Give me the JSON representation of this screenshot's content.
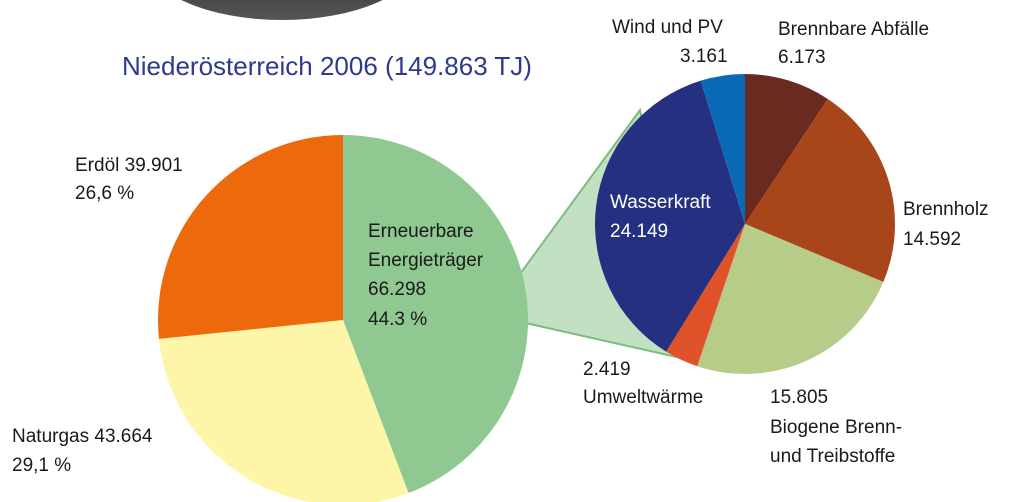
{
  "chart_data": {
    "type": "pie-of-pie",
    "title": "Niederösterreich 2006 (149.863 TJ)",
    "main": {
      "slices": [
        {
          "name": [
            "Erneuerbare",
            "Energieträger"
          ],
          "value": 66298,
          "value_label": "66.298",
          "percent": 44.3,
          "percent_label": "44.3 %",
          "color": "#8fc891"
        },
        {
          "name": "Naturgas",
          "value": 43664,
          "value_label": "43.664",
          "percent": 29.1,
          "percent_label": "29,1 %",
          "color": "#fdf5a8"
        },
        {
          "name": "Erdöl",
          "value": 39901,
          "value_label": "39.901",
          "percent": 26.6,
          "percent_label": "26,6 %",
          "color": "#ec6a0c"
        }
      ]
    },
    "detail": {
      "slices": [
        {
          "name": "Brennbare Abfälle",
          "value": 6173,
          "value_label": "6.173",
          "color": "#6b2a20"
        },
        {
          "name": "Brennholz",
          "value": 14592,
          "value_label": "14.592",
          "color": "#a8461a"
        },
        {
          "name": [
            "Biogene Brenn-",
            "und Treibstoffe"
          ],
          "value": 15805,
          "value_label": "15.805",
          "color": "#b8cc8a"
        },
        {
          "name": "Umweltwärme",
          "value": 2419,
          "value_label": "2.419",
          "color": "#e0522a"
        },
        {
          "name": "Wasserkraft",
          "value": 24149,
          "value_label": "24.149",
          "color": "#253080"
        },
        {
          "name": "Wind und PV",
          "value": 3161,
          "value_label": "3.161",
          "color": "#0a6ab8"
        }
      ]
    }
  }
}
